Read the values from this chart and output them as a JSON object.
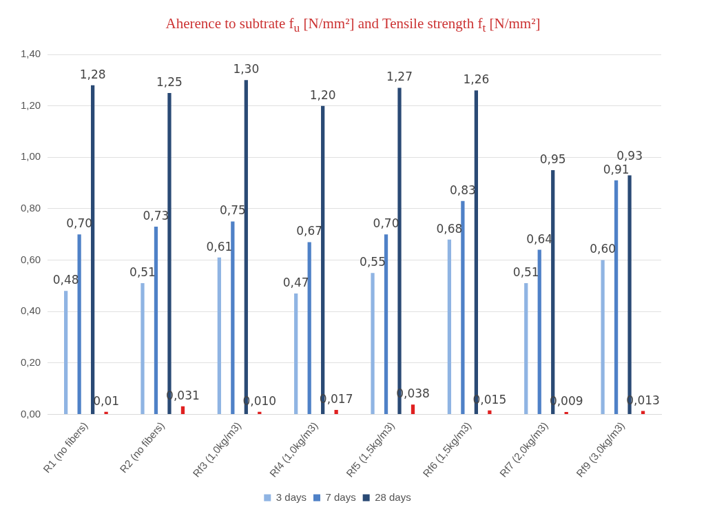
{
  "chart_data": {
    "type": "bar",
    "title": "Aherence to subtrate f$_{u}$ [N/mm²] and Tensile strength f$_{t}$ [N/mm²]",
    "categories": [
      "R1 (no fibers)",
      "R2 (no fibers)",
      "Rf3 (1,0kg/m3)",
      "Rf4 (1,0kg/m3)",
      "Rf5 (1,5kg/m3)",
      "Rf6 (1,5kg/m3)",
      "Rf7 (2,0kg/m3)",
      "Rf9 (3,0kg/m3)"
    ],
    "series": [
      {
        "name": "3 days",
        "color": "#8fb4e3",
        "values": [
          0.48,
          0.51,
          0.61,
          0.47,
          0.55,
          0.68,
          0.51,
          0.6
        ],
        "value_labels": [
          "0,48",
          "0,51",
          "0,61",
          "0,47",
          "0,55",
          "0,68",
          "0,51",
          "0,60"
        ]
      },
      {
        "name": "7 days",
        "color": "#4f81c7",
        "values": [
          0.7,
          0.73,
          0.75,
          0.67,
          0.7,
          0.83,
          0.64,
          0.91
        ],
        "value_labels": [
          "0,70",
          "0,73",
          "0,75",
          "0,67",
          "0,70",
          "0,83",
          "0,64",
          "0,91"
        ]
      },
      {
        "name": "28 days",
        "color": "#2a4a75",
        "values": [
          1.28,
          1.25,
          1.3,
          1.2,
          1.27,
          1.26,
          0.95,
          0.93
        ],
        "value_labels": [
          "1,28",
          "1,25",
          "1,30",
          "1,20",
          "1,27",
          "1,26",
          "0,95",
          "0,93"
        ]
      },
      {
        "color": "#e02020",
        "values": [
          0.01,
          0.031,
          0.01,
          0.017,
          0.038,
          0.015,
          0.009,
          0.013
        ],
        "value_labels": [
          "0,01",
          "0,031",
          "0,010",
          "0,017",
          "0,038",
          "0,015",
          "0,009",
          "0,013"
        ]
      }
    ],
    "ylim": [
      0,
      1.4
    ],
    "yticks": [
      {
        "value": 0,
        "label": "0,00"
      },
      {
        "value": 0.2,
        "label": "0,20"
      },
      {
        "value": 0.4,
        "label": "0,40"
      },
      {
        "value": 0.6,
        "label": "0,60"
      },
      {
        "value": 0.8,
        "label": "0,80"
      },
      {
        "value": 1.0,
        "label": "1,00"
      },
      {
        "value": 1.2,
        "label": "1,20"
      },
      {
        "value": 1.4,
        "label": "1,40"
      }
    ],
    "grid": "y",
    "legend": "bottom"
  }
}
